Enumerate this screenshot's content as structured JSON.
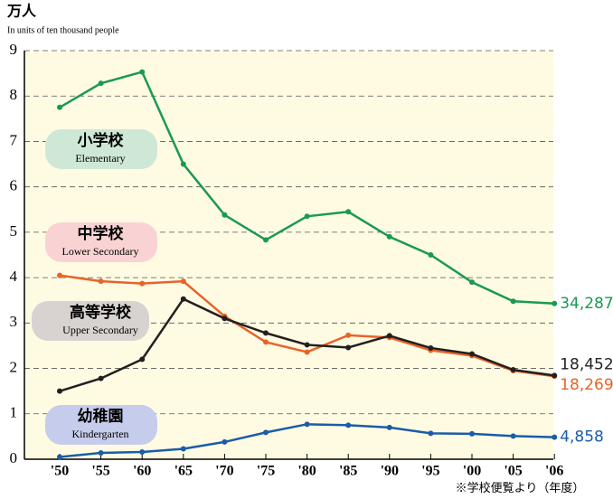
{
  "chart_data": {
    "type": "line",
    "title": "万人",
    "subtitle": "In units of ten thousand people",
    "note": "※学校便覧より（年度）",
    "categories": [
      "'50",
      "'55",
      "'60",
      "'65",
      "'70",
      "'75",
      "'80",
      "'85",
      "'90",
      "'95",
      "'00",
      "'05",
      "'06"
    ],
    "ylim": [
      0,
      9
    ],
    "yticks": [
      0,
      1,
      2,
      3,
      4,
      5,
      6,
      7,
      8,
      9
    ],
    "grid": true,
    "series": [
      {
        "name": "小学校",
        "name_en": "Elementary",
        "color": "#1a9a50",
        "box_color": "#cfe8d6",
        "values": [
          7.75,
          8.28,
          8.53,
          6.5,
          5.38,
          4.83,
          5.35,
          5.45,
          4.9,
          4.5,
          3.9,
          3.48,
          3.4287
        ],
        "value_labels": [
          null,
          null,
          null,
          null,
          null,
          null,
          null,
          null,
          null,
          null,
          null,
          null,
          "34,287"
        ]
      },
      {
        "name": "中学校",
        "name_en": "Lower Secondary",
        "color": "#e8632a",
        "box_color": "#f9d3d3",
        "values": [
          4.05,
          3.92,
          3.87,
          3.92,
          3.15,
          2.58,
          2.36,
          2.73,
          2.68,
          2.4,
          2.28,
          1.95,
          1.8269
        ],
        "value_labels": [
          null,
          null,
          null,
          null,
          null,
          null,
          null,
          null,
          null,
          null,
          null,
          null,
          "18,269"
        ]
      },
      {
        "name": "高等学校",
        "name_en": "Upper Secondary",
        "color": "#231f20",
        "box_color": "#d8d3d0",
        "values": [
          1.5,
          1.78,
          2.2,
          3.53,
          3.1,
          2.78,
          2.52,
          2.46,
          2.72,
          2.45,
          2.32,
          1.97,
          1.8452
        ],
        "value_labels": [
          null,
          null,
          null,
          null,
          null,
          null,
          null,
          null,
          null,
          null,
          null,
          null,
          "18,452"
        ]
      },
      {
        "name": "幼稚園",
        "name_en": "Kindergarten",
        "color": "#1a5ca8",
        "box_color": "#c6cceb",
        "values": [
          0.05,
          0.14,
          0.16,
          0.23,
          0.38,
          0.59,
          0.77,
          0.75,
          0.7,
          0.57,
          0.56,
          0.51,
          0.4858
        ],
        "value_labels": [
          null,
          null,
          null,
          null,
          null,
          null,
          null,
          null,
          null,
          null,
          null,
          null,
          "4,858"
        ]
      }
    ]
  }
}
